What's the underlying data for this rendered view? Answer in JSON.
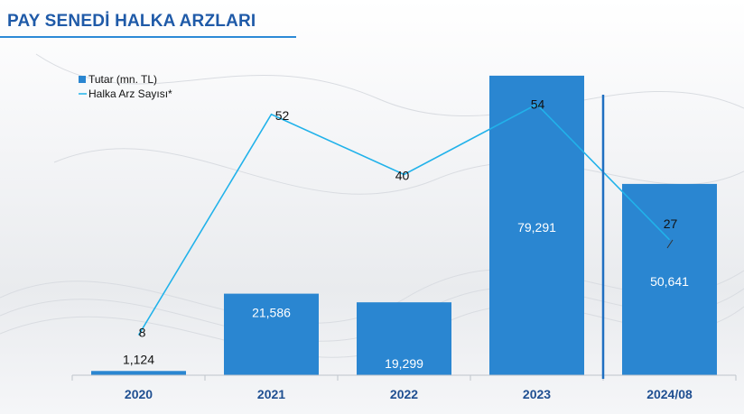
{
  "header": {
    "title": "PAY SENEDİ HALKA ARZLARI"
  },
  "colors": {
    "bar": "#2a86d1",
    "line": "#21b2ea",
    "axis_text": "#1f4f91",
    "title": "#1f5aa8",
    "divider": "#1f6fc1"
  },
  "chart_data": {
    "type": "bar",
    "title": "",
    "xlabel": "",
    "ylabel": "",
    "categories": [
      "2020",
      "2021",
      "2022",
      "2023",
      "2024/08"
    ],
    "legend_position": "top-left",
    "grid": false,
    "bar_label_text": [
      "1,124",
      "21,586",
      "19,299",
      "79,291",
      "50,641"
    ],
    "line_label_text": [
      "8",
      "52",
      "40",
      "54",
      "27"
    ],
    "series": [
      {
        "name": "Tutar (mn. TL)",
        "type": "bar",
        "values": [
          1124,
          21586,
          19299,
          79291,
          50641
        ],
        "ylim": [
          0,
          85000
        ]
      },
      {
        "name": "Halka Arz Sayısı*",
        "type": "line",
        "values": [
          8,
          52,
          40,
          54,
          27
        ],
        "ylim": [
          0,
          64
        ]
      }
    ]
  }
}
